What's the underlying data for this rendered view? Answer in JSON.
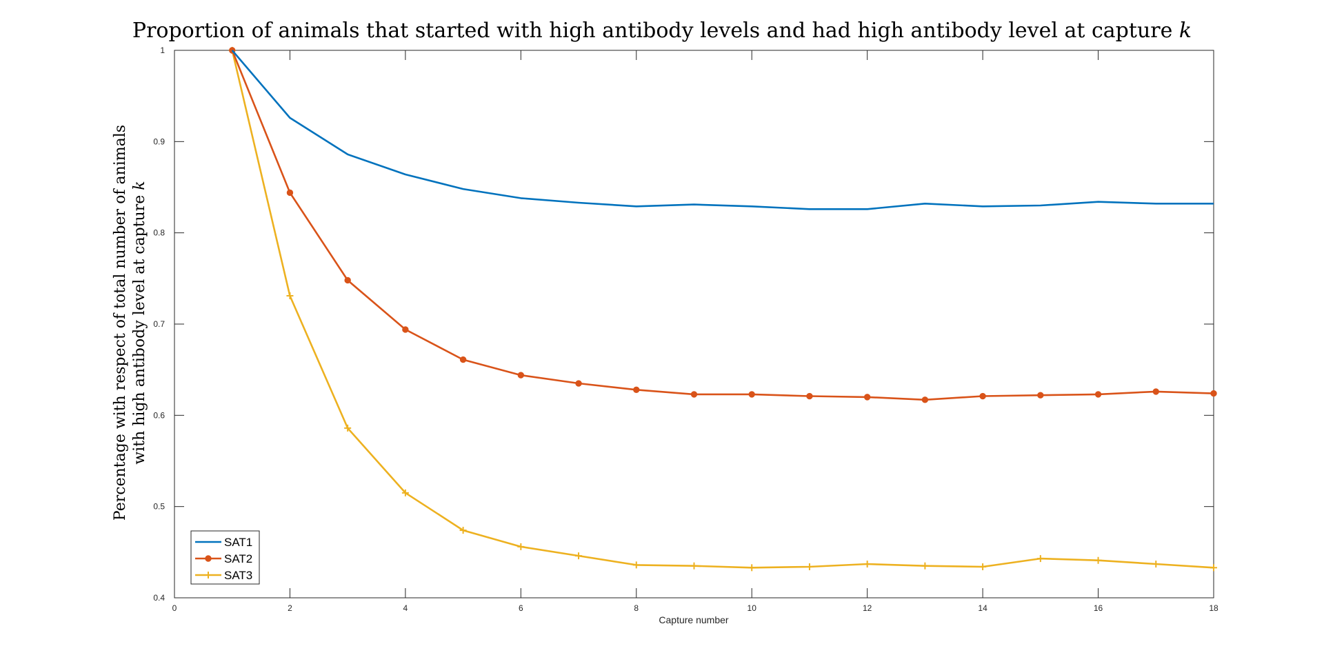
{
  "chart_data": {
    "type": "line",
    "title": "Proportion of animals that started with high antibody levels and had high antibody level at capture",
    "title_var": "k",
    "xlabel": "Capture number",
    "ylabel_line1": "Percentage with respect of total number of animals",
    "ylabel_line2": "with high antibody level at capture",
    "ylabel_var": "k",
    "xlim": [
      0,
      18
    ],
    "ylim": [
      0.4,
      1.0
    ],
    "xticks": [
      0,
      2,
      4,
      6,
      8,
      10,
      12,
      14,
      16,
      18
    ],
    "yticks": [
      0.4,
      0.5,
      0.6,
      0.7,
      0.8,
      0.9,
      1.0
    ],
    "ytick_labels": [
      "0.4",
      "0.5",
      "0.6",
      "0.7",
      "0.8",
      "0.9",
      "1"
    ],
    "grid": false,
    "legend_position": "bottom-left",
    "x": [
      1,
      2,
      3,
      4,
      5,
      6,
      7,
      8,
      9,
      10,
      11,
      12,
      13,
      14,
      15,
      16,
      17,
      18
    ],
    "series": [
      {
        "name": "SAT1",
        "color": "#0072BD",
        "marker": "none",
        "values": [
          1.0,
          0.926,
          0.886,
          0.864,
          0.848,
          0.838,
          0.833,
          0.829,
          0.831,
          0.829,
          0.826,
          0.826,
          0.832,
          0.829,
          0.83,
          0.834,
          0.832,
          0.832
        ]
      },
      {
        "name": "SAT2",
        "color": "#D95319",
        "marker": "circle",
        "values": [
          1.0,
          0.844,
          0.748,
          0.694,
          0.661,
          0.644,
          0.635,
          0.628,
          0.623,
          0.623,
          0.621,
          0.62,
          0.617,
          0.621,
          0.622,
          0.623,
          0.626,
          0.624
        ]
      },
      {
        "name": "SAT3",
        "color": "#EDB120",
        "marker": "plus",
        "values": [
          1.0,
          0.731,
          0.586,
          0.515,
          0.474,
          0.456,
          0.446,
          0.436,
          0.435,
          0.433,
          0.434,
          0.437,
          0.435,
          0.434,
          0.443,
          0.441,
          0.437,
          0.433
        ]
      }
    ]
  }
}
